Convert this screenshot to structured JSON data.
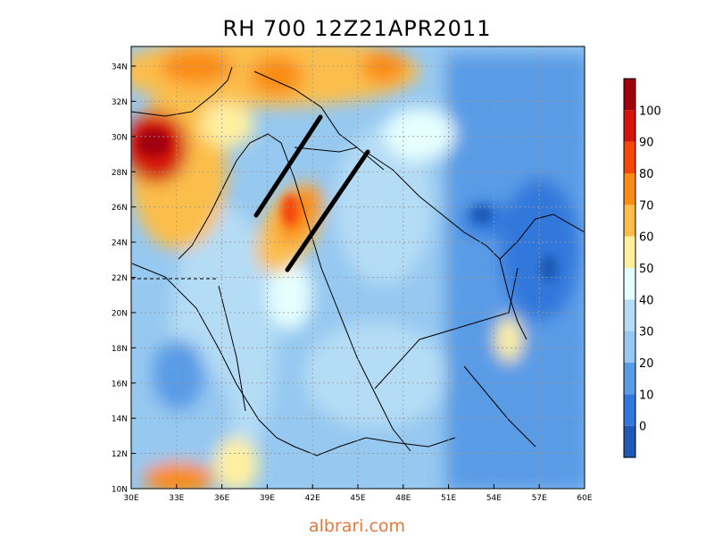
{
  "title": "RH 700 12Z21APR2011",
  "credit": "albrari.com",
  "map": {
    "variable": "RH",
    "level": "700",
    "valid_time": "12Z21APR2011",
    "lon_ticks": [
      "30E",
      "33E",
      "36E",
      "39E",
      "42E",
      "45E",
      "48E",
      "51E",
      "54E",
      "57E",
      "60E"
    ],
    "lat_ticks": [
      "10N",
      "12N",
      "14N",
      "16N",
      "18N",
      "20N",
      "22N",
      "24N",
      "26N",
      "28N",
      "30N",
      "32N",
      "34N"
    ],
    "annotation_lines": 2
  },
  "colorbar": {
    "labels": [
      "100",
      "90",
      "80",
      "70",
      "60",
      "50",
      "40",
      "30",
      "20",
      "10",
      "0"
    ],
    "colors": [
      "#a0000a",
      "#d2140a",
      "#f5460a",
      "#fa8c14",
      "#fbbe4b",
      "#fff0a0",
      "#e6ffff",
      "#b4dcf5",
      "#96c8f0",
      "#5a9be6",
      "#3278dc",
      "#1e5ab4"
    ]
  }
}
